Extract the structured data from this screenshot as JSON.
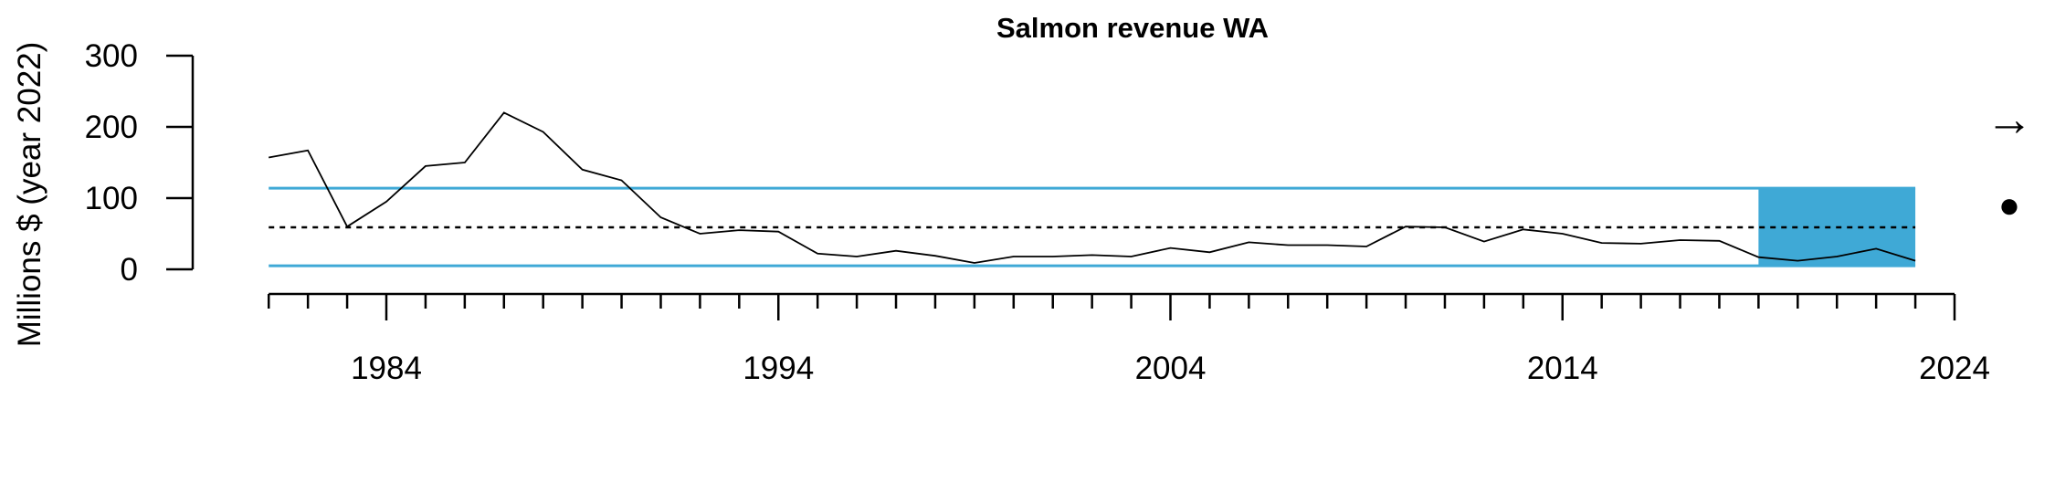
{
  "chart_data": {
    "type": "line",
    "title": "Salmon revenue WA",
    "ylabel": "Millions $ (year 2022)",
    "xlabel": "",
    "xlim": [
      1981,
      2024
    ],
    "ylim": [
      0,
      300
    ],
    "x_ticks": [
      1984,
      1994,
      2004,
      2014,
      2024
    ],
    "y_ticks": [
      0,
      100,
      200,
      300
    ],
    "grid": false,
    "series": [
      {
        "x": [
          1981,
          1982,
          1983,
          1984,
          1985,
          1986,
          1987,
          1988,
          1989,
          1990,
          1991,
          1992,
          1993,
          1994,
          1995,
          1996,
          1997,
          1998,
          1999,
          2000,
          2001,
          2002,
          2003,
          2004,
          2005,
          2006,
          2007,
          2008,
          2009,
          2010,
          2011,
          2012,
          2013,
          2014,
          2015,
          2016,
          2017,
          2018,
          2019,
          2020,
          2021,
          2022,
          2023
        ],
        "values": [
          157,
          167,
          60,
          95,
          145,
          150,
          220,
          193,
          140,
          125,
          73,
          50,
          55,
          53,
          22,
          18,
          26,
          19,
          9,
          18,
          18,
          20,
          18,
          30,
          24,
          38,
          34,
          34,
          32,
          60,
          59,
          39,
          56,
          50,
          37,
          36,
          41,
          40,
          17,
          12,
          18,
          29,
          12
        ]
      }
    ],
    "mean_line": 59,
    "upper_line": 114,
    "lower_line": 5,
    "recent_window": [
      2019,
      2023
    ],
    "colors": {
      "line": "#000000",
      "band": "#3fa9d6",
      "mean": "#000000"
    },
    "trend_symbol": "→",
    "status_symbol": "●"
  }
}
